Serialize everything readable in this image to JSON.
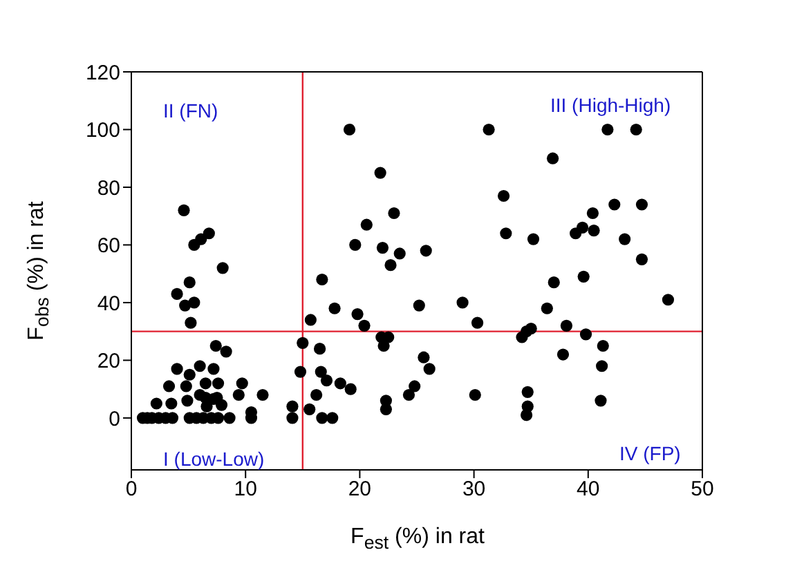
{
  "chart_data": {
    "type": "scatter",
    "xlabel": "F$_{est}$ (%) in rat",
    "ylabel": "F$_{obs}$ (%) in rat",
    "annotations": [
      "II (FN)",
      "III (High-High)",
      "I (Low-Low)",
      "IV (FP)"
    ],
    "xlim": [
      0,
      50
    ],
    "xticks": [
      0,
      10,
      20,
      30,
      40,
      50
    ],
    "ylim": [
      -18,
      120
    ],
    "yticks": [
      0,
      20,
      40,
      60,
      80,
      100,
      120
    ],
    "marker": "circle",
    "ref_lines": [
      {
        "axis": "x",
        "value": 15,
        "color": "#e02030"
      },
      {
        "axis": "y",
        "value": 30,
        "color": "#e02030"
      }
    ],
    "series": [
      {
        "color": "#000000",
        "x": [
          4.6,
          5.5,
          6.1,
          6.8,
          8,
          5.1,
          4,
          4.7,
          5.5,
          5.2,
          7.4,
          8.3,
          4,
          6,
          7.2,
          5.1,
          3.3,
          4.8,
          6.5,
          7.6,
          9.7,
          9.4,
          11.5,
          6,
          6.5,
          7.5,
          2.2,
          3.5,
          7.9,
          10.5,
          4.9,
          6.6,
          7.2,
          1,
          1.4,
          1.8,
          2.4,
          3,
          3.6,
          5.1,
          5.7,
          6.3,
          7,
          7.6,
          8.6,
          10.5,
          19.1,
          21.8,
          23,
          20.6,
          19.6,
          22,
          23.5,
          22.7,
          25.8,
          16.7,
          17.8,
          19.8,
          20.4,
          15.7,
          25.2,
          29,
          30.3,
          15,
          16.5,
          21.9,
          22.5,
          22.1,
          25.6,
          26.1,
          14.8,
          16.6,
          17.1,
          18.3,
          19.2,
          24.8,
          24.3,
          16.2,
          30.1,
          22.3,
          22.3,
          15.6,
          14.1,
          14.1,
          16.7,
          17.6,
          31.3,
          41.7,
          44.2,
          36.9,
          32.6,
          42.3,
          44.7,
          40.4,
          39.5,
          38.9,
          40.5,
          32.8,
          35.2,
          43.2,
          44.7,
          39.6,
          37,
          47,
          36.4,
          38.1,
          35,
          34.6,
          34.2,
          39.8,
          41.3,
          37.8,
          41.2,
          34.7,
          34.7,
          34.6,
          41.1
        ],
        "values": [
          72,
          60,
          62,
          64,
          52,
          47,
          43,
          39,
          40,
          33,
          25,
          23,
          17,
          18,
          17,
          15,
          11,
          11,
          12,
          12,
          12,
          8,
          8,
          8,
          7,
          7,
          5,
          5,
          4.5,
          2,
          6,
          4,
          6.6,
          0,
          0,
          0,
          0,
          0,
          0,
          0,
          0,
          0,
          0,
          0,
          0,
          0,
          100,
          85,
          71,
          67,
          60,
          59,
          57,
          53,
          58,
          48,
          38,
          36,
          32,
          34,
          39,
          40,
          33,
          26,
          24,
          28,
          28,
          25,
          21,
          17,
          16,
          16,
          13,
          12,
          10,
          11,
          8,
          8,
          8,
          6,
          3,
          3,
          4,
          0,
          0,
          0,
          100,
          100,
          100,
          90,
          77,
          74,
          74,
          71,
          66,
          64,
          65,
          64,
          62,
          62,
          55,
          49,
          47,
          41,
          38,
          32,
          31,
          30,
          28,
          29,
          25,
          22,
          18,
          9,
          4,
          1,
          6
        ]
      }
    ]
  }
}
